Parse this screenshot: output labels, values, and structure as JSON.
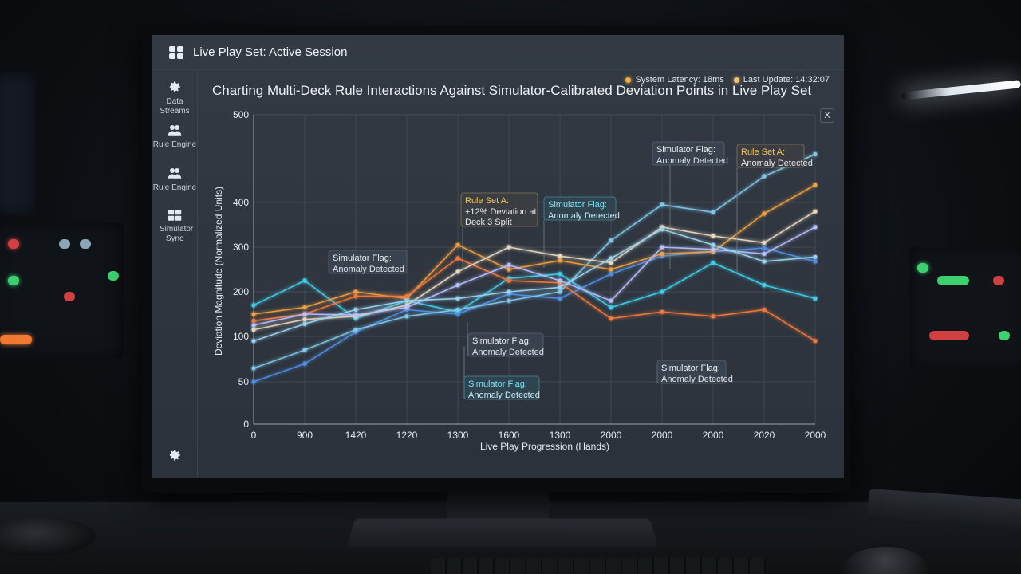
{
  "window": {
    "title": "Live Play Set: Active Session"
  },
  "sidebar": {
    "items": [
      {
        "label": "Data Streams",
        "icon": "gear-icon"
      },
      {
        "label": "Rule Engine",
        "icon": "users-icon"
      },
      {
        "label": "Rule Engine",
        "icon": "users-icon"
      },
      {
        "label": "Simulator Sync",
        "icon": "grid-icon"
      }
    ],
    "bottom_icon": "gear-icon"
  },
  "status": {
    "latency": "System Latency: 18ms",
    "last_update": "Last Update: 14:32:07",
    "latency_color": "#f0b040",
    "update_color": "#f0c070"
  },
  "close_label": "X",
  "chart_data": {
    "type": "line",
    "title": "Charting Multi-Deck Rule Interactions Against Simulator-Calibrated Deviation Points in Live Play Set",
    "xlabel": "Live Play Progression (Hands)",
    "ylabel": "Deviation Magnitude (Normalized Units)",
    "categories": [
      "0",
      "900",
      "1420",
      "1220",
      "1300",
      "1600",
      "1300",
      "2000",
      "2000",
      "2000",
      "2020",
      "2000"
    ],
    "yticks": [
      "0",
      "50",
      "100",
      "200",
      "300",
      "400",
      "500"
    ],
    "grid": true,
    "series": [
      {
        "color": "#3fd0ec",
        "values": [
          170,
          225,
          140,
          180,
          155,
          230,
          240,
          165,
          200,
          265,
          215,
          185
        ]
      },
      {
        "color": "#4f8fe6",
        "values": [
          50,
          70,
          110,
          160,
          150,
          195,
          185,
          240,
          280,
          290,
          298,
          268
        ]
      },
      {
        "color": "#7fc8ea",
        "values": [
          65,
          85,
          115,
          145,
          160,
          180,
          200,
          315,
          395,
          378,
          430,
          455
        ]
      },
      {
        "color": "#f0a040",
        "values": [
          150,
          165,
          200,
          185,
          305,
          250,
          270,
          250,
          285,
          290,
          375,
          420
        ]
      },
      {
        "color": "#f47a3a",
        "values": [
          135,
          150,
          190,
          190,
          275,
          225,
          220,
          140,
          155,
          145,
          160,
          95
        ]
      },
      {
        "color": "#e8d8c0",
        "values": [
          115,
          138,
          145,
          170,
          245,
          300,
          280,
          265,
          345,
          325,
          310,
          380
        ]
      },
      {
        "color": "#b8c0ff",
        "values": [
          125,
          150,
          148,
          165,
          215,
          260,
          225,
          180,
          300,
          295,
          285,
          345
        ]
      },
      {
        "color": "#9ad4f0",
        "values": [
          95,
          128,
          160,
          180,
          185,
          200,
          210,
          275,
          340,
          305,
          268,
          278
        ]
      }
    ],
    "annotations": [
      {
        "label": "Simulator Flag:",
        "text": "Anomaly Detected",
        "style": "plain"
      },
      {
        "label": "Rule Set A:",
        "text": "+12% Deviation at Deck 3 Split",
        "style": "gold"
      },
      {
        "label": "Simulator Flag:",
        "text": "Anomaly Detected",
        "style": "cyan"
      },
      {
        "label": "Simulator Flag:",
        "text": "Anomaly Detected",
        "style": "plain"
      },
      {
        "label": "Rule Set A:",
        "text": "Anomaly Detected",
        "style": "gold"
      },
      {
        "label": "Simulator Flag:",
        "text": "Anomaly Detected",
        "style": "plain"
      },
      {
        "label": "Simulator Flag:",
        "text": "Anomaly Detected",
        "style": "cyan"
      },
      {
        "label": "Simulator Flag:",
        "text": "Anomaly Detected",
        "style": "plain"
      }
    ]
  }
}
